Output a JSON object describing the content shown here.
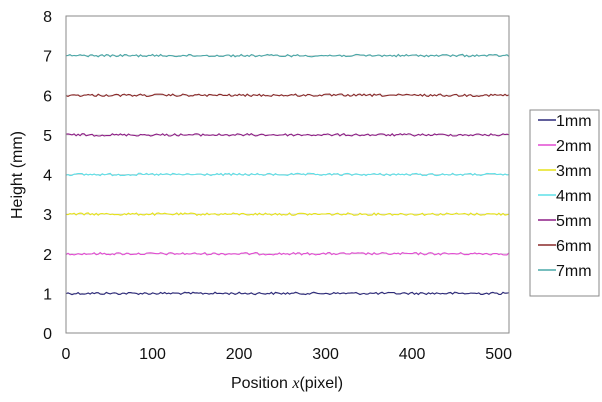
{
  "chart_data": {
    "type": "line",
    "xlabel": {
      "prefix": "Position ",
      "var": "x",
      "suffix": "(pixel)"
    },
    "ylabel": "Height (mm)",
    "xlim": [
      0,
      512
    ],
    "ylim": [
      0,
      8
    ],
    "x_ticks": [
      0,
      100,
      200,
      300,
      400,
      500
    ],
    "y_ticks": [
      0,
      1,
      2,
      3,
      4,
      5,
      6,
      7,
      8
    ],
    "x_tick_labels": [
      "0",
      "100",
      "200",
      "300",
      "400",
      "500"
    ],
    "y_tick_labels": [
      "0",
      "1",
      "2",
      "3",
      "4",
      "5",
      "6",
      "7",
      "8"
    ],
    "grid": "horizontal",
    "legend_position": "right",
    "x": [
      0,
      512
    ],
    "series": [
      {
        "name": "1mm",
        "values": [
          1,
          1
        ],
        "color": "#2d2a7a"
      },
      {
        "name": "2mm",
        "values": [
          2,
          2
        ],
        "color": "#e24cd2"
      },
      {
        "name": "3mm",
        "values": [
          3,
          3
        ],
        "color": "#e6e21a"
      },
      {
        "name": "4mm",
        "values": [
          4,
          4
        ],
        "color": "#5ee0e8"
      },
      {
        "name": "5mm",
        "values": [
          5,
          5
        ],
        "color": "#8e1f86"
      },
      {
        "name": "6mm",
        "values": [
          6,
          6
        ],
        "color": "#8a2a2a"
      },
      {
        "name": "7mm",
        "values": [
          7,
          7
        ],
        "color": "#4aa8a8"
      }
    ]
  }
}
